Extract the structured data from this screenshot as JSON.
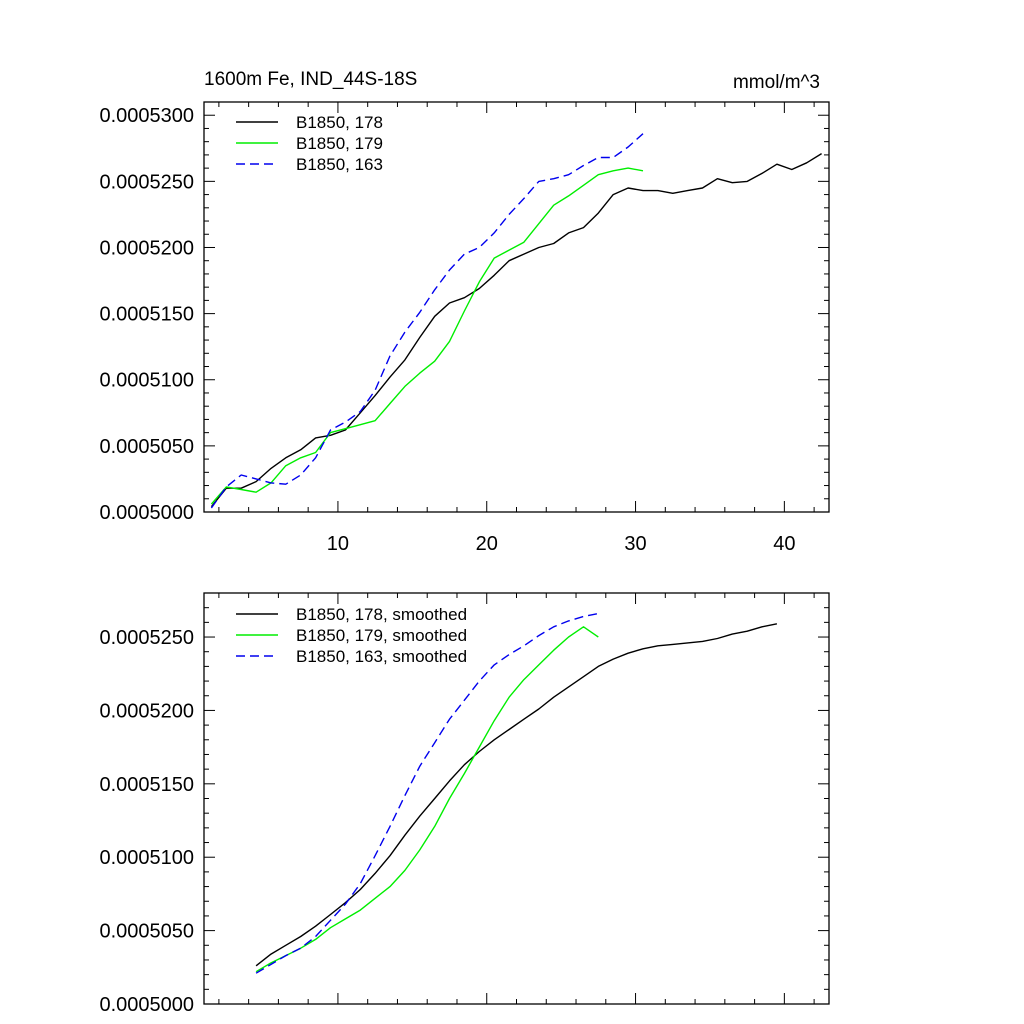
{
  "chart_data": [
    {
      "type": "line",
      "title": "1600m Fe, IND_44S-18S",
      "units": "mmol/m^3",
      "xlim": [
        1,
        43
      ],
      "ylim": [
        0.0005,
        0.000531
      ],
      "x_ticks": [
        10,
        20,
        30,
        40
      ],
      "x_tick_labels": [
        "10",
        "20",
        "30",
        "40"
      ],
      "y_ticks": [
        0.0005,
        0.000505,
        0.00051,
        0.000515,
        0.00052,
        0.000525,
        0.00053
      ],
      "y_tick_labels": [
        "0.0005000",
        "0.0005050",
        "0.0005100",
        "0.0005150",
        "0.0005200",
        "0.0005250",
        "0.0005300"
      ],
      "legend_position": "top-left",
      "series": [
        {
          "name": "B1850, 178",
          "color": "#000000",
          "dash": "solid",
          "x": [
            1.5,
            2.5,
            3.5,
            4.5,
            5.5,
            6.5,
            7.5,
            8.5,
            9.5,
            10.5,
            11.5,
            12.5,
            13.5,
            14.5,
            15.5,
            16.5,
            17.5,
            18.5,
            19.5,
            20.5,
            21.5,
            22.5,
            23.5,
            24.5,
            25.5,
            26.5,
            27.5,
            28.5,
            29.5,
            30.5,
            31.5,
            32.5,
            33.5,
            34.5,
            35.5,
            36.5,
            37.5,
            38.5,
            39.5,
            40.5,
            41.5,
            42.5
          ],
          "y": [
            0.0005004,
            0.0005018,
            0.0005018,
            0.0005023,
            0.0005033,
            0.0005041,
            0.0005047,
            0.0005056,
            0.0005058,
            0.0005062,
            0.0005075,
            0.0005088,
            0.0005102,
            0.0005115,
            0.0005132,
            0.0005148,
            0.0005158,
            0.0005162,
            0.0005169,
            0.0005179,
            0.000519,
            0.0005195,
            0.00052,
            0.0005203,
            0.0005211,
            0.0005215,
            0.0005226,
            0.000524,
            0.0005245,
            0.0005243,
            0.0005243,
            0.0005241,
            0.0005243,
            0.0005245,
            0.0005252,
            0.0005249,
            0.000525,
            0.0005256,
            0.0005263,
            0.0005259,
            0.0005264,
            0.0005271
          ]
        },
        {
          "name": "B1850, 179",
          "color": "#00ee00",
          "dash": "solid",
          "x": [
            1.5,
            2.5,
            3.5,
            4.5,
            5.5,
            6.5,
            7.5,
            8.5,
            9.5,
            10.5,
            11.5,
            12.5,
            13.5,
            14.5,
            15.5,
            16.5,
            17.5,
            18.5,
            19.5,
            20.5,
            21.5,
            22.5,
            23.5,
            24.5,
            25.5,
            26.5,
            27.5,
            28.5,
            29.5,
            30.5
          ],
          "y": [
            0.0005006,
            0.0005019,
            0.0005017,
            0.0005015,
            0.0005022,
            0.0005035,
            0.0005041,
            0.0005045,
            0.000506,
            0.0005063,
            0.0005066,
            0.0005069,
            0.0005082,
            0.0005095,
            0.0005105,
            0.0005114,
            0.0005129,
            0.0005152,
            0.0005174,
            0.0005192,
            0.0005198,
            0.0005204,
            0.0005218,
            0.0005232,
            0.0005239,
            0.0005247,
            0.0005255,
            0.0005258,
            0.000526,
            0.0005258
          ]
        },
        {
          "name": "B1850, 163",
          "color": "#0000ee",
          "dash": "dashed",
          "x": [
            1.5,
            2.5,
            3.5,
            4.5,
            5.5,
            6.5,
            7.5,
            8.5,
            9.5,
            10.5,
            11.5,
            12.5,
            13.5,
            14.5,
            15.5,
            16.5,
            17.5,
            18.5,
            19.5,
            20.5,
            21.5,
            22.5,
            23.5,
            24.5,
            25.5,
            26.5,
            27.5,
            28.5,
            29.5,
            30.5
          ],
          "y": [
            0.0005003,
            0.0005019,
            0.0005028,
            0.0005025,
            0.0005022,
            0.0005021,
            0.0005028,
            0.0005041,
            0.0005062,
            0.0005068,
            0.0005076,
            0.0005092,
            0.0005118,
            0.0005136,
            0.0005151,
            0.0005168,
            0.0005183,
            0.0005195,
            0.00052,
            0.0005211,
            0.0005225,
            0.0005237,
            0.000525,
            0.0005252,
            0.0005255,
            0.0005262,
            0.0005268,
            0.0005268,
            0.0005276,
            0.0005286
          ]
        }
      ]
    },
    {
      "type": "line",
      "xlim": [
        1,
        43
      ],
      "ylim": [
        0.0005,
        0.000528
      ],
      "x_ticks": [
        10,
        20,
        30,
        40
      ],
      "y_ticks": [
        0.0005,
        0.000505,
        0.00051,
        0.000515,
        0.00052,
        0.000525
      ],
      "y_tick_labels": [
        "0.0005000",
        "0.0005050",
        "0.0005100",
        "0.0005150",
        "0.0005200",
        "0.0005250"
      ],
      "legend_position": "top-left",
      "series": [
        {
          "name": "B1850, 178, smoothed",
          "color": "#000000",
          "dash": "solid",
          "x": [
            4.5,
            5.5,
            6.5,
            7.5,
            8.5,
            9.5,
            10.5,
            11.5,
            12.5,
            13.5,
            14.5,
            15.5,
            16.5,
            17.5,
            18.5,
            19.5,
            20.5,
            21.5,
            22.5,
            23.5,
            24.5,
            25.5,
            26.5,
            27.5,
            28.5,
            29.5,
            30.5,
            31.5,
            32.5,
            33.5,
            34.5,
            35.5,
            36.5,
            37.5,
            38.5,
            39.5
          ],
          "y": [
            0.0005026,
            0.0005034,
            0.000504,
            0.0005046,
            0.0005053,
            0.0005061,
            0.0005069,
            0.0005078,
            0.0005089,
            0.0005101,
            0.0005115,
            0.0005128,
            0.000514,
            0.0005152,
            0.0005163,
            0.0005172,
            0.000518,
            0.0005187,
            0.0005194,
            0.0005201,
            0.0005209,
            0.0005216,
            0.0005223,
            0.000523,
            0.0005235,
            0.0005239,
            0.0005242,
            0.0005244,
            0.0005245,
            0.0005246,
            0.0005247,
            0.0005249,
            0.0005252,
            0.0005254,
            0.0005257,
            0.0005259
          ]
        },
        {
          "name": "B1850, 179, smoothed",
          "color": "#00ee00",
          "dash": "solid",
          "x": [
            4.5,
            5.5,
            6.5,
            7.5,
            8.5,
            9.5,
            10.5,
            11.5,
            12.5,
            13.5,
            14.5,
            15.5,
            16.5,
            17.5,
            18.5,
            19.5,
            20.5,
            21.5,
            22.5,
            23.5,
            24.5,
            25.5,
            26.5,
            27.5
          ],
          "y": [
            0.0005022,
            0.0005028,
            0.0005033,
            0.0005038,
            0.0005044,
            0.0005052,
            0.0005058,
            0.0005064,
            0.0005072,
            0.000508,
            0.0005091,
            0.0005105,
            0.0005121,
            0.000514,
            0.0005157,
            0.0005175,
            0.0005193,
            0.0005209,
            0.0005221,
            0.0005231,
            0.0005241,
            0.000525,
            0.0005257,
            0.000525
          ]
        },
        {
          "name": "B1850, 163, smoothed",
          "color": "#0000ee",
          "dash": "dashed",
          "x": [
            4.5,
            5.5,
            6.5,
            7.5,
            8.5,
            9.5,
            10.5,
            11.5,
            12.5,
            13.5,
            14.5,
            15.5,
            16.5,
            17.5,
            18.5,
            19.5,
            20.5,
            21.5,
            22.5,
            23.5,
            24.5,
            25.5,
            26.5,
            27.5
          ],
          "y": [
            0.0005021,
            0.0005027,
            0.0005033,
            0.0005038,
            0.0005046,
            0.0005057,
            0.0005068,
            0.0005082,
            0.0005101,
            0.0005121,
            0.0005142,
            0.0005162,
            0.0005178,
            0.0005194,
            0.0005207,
            0.000522,
            0.0005231,
            0.0005238,
            0.0005244,
            0.0005251,
            0.0005257,
            0.0005261,
            0.0005264,
            0.0005266
          ]
        }
      ]
    }
  ]
}
